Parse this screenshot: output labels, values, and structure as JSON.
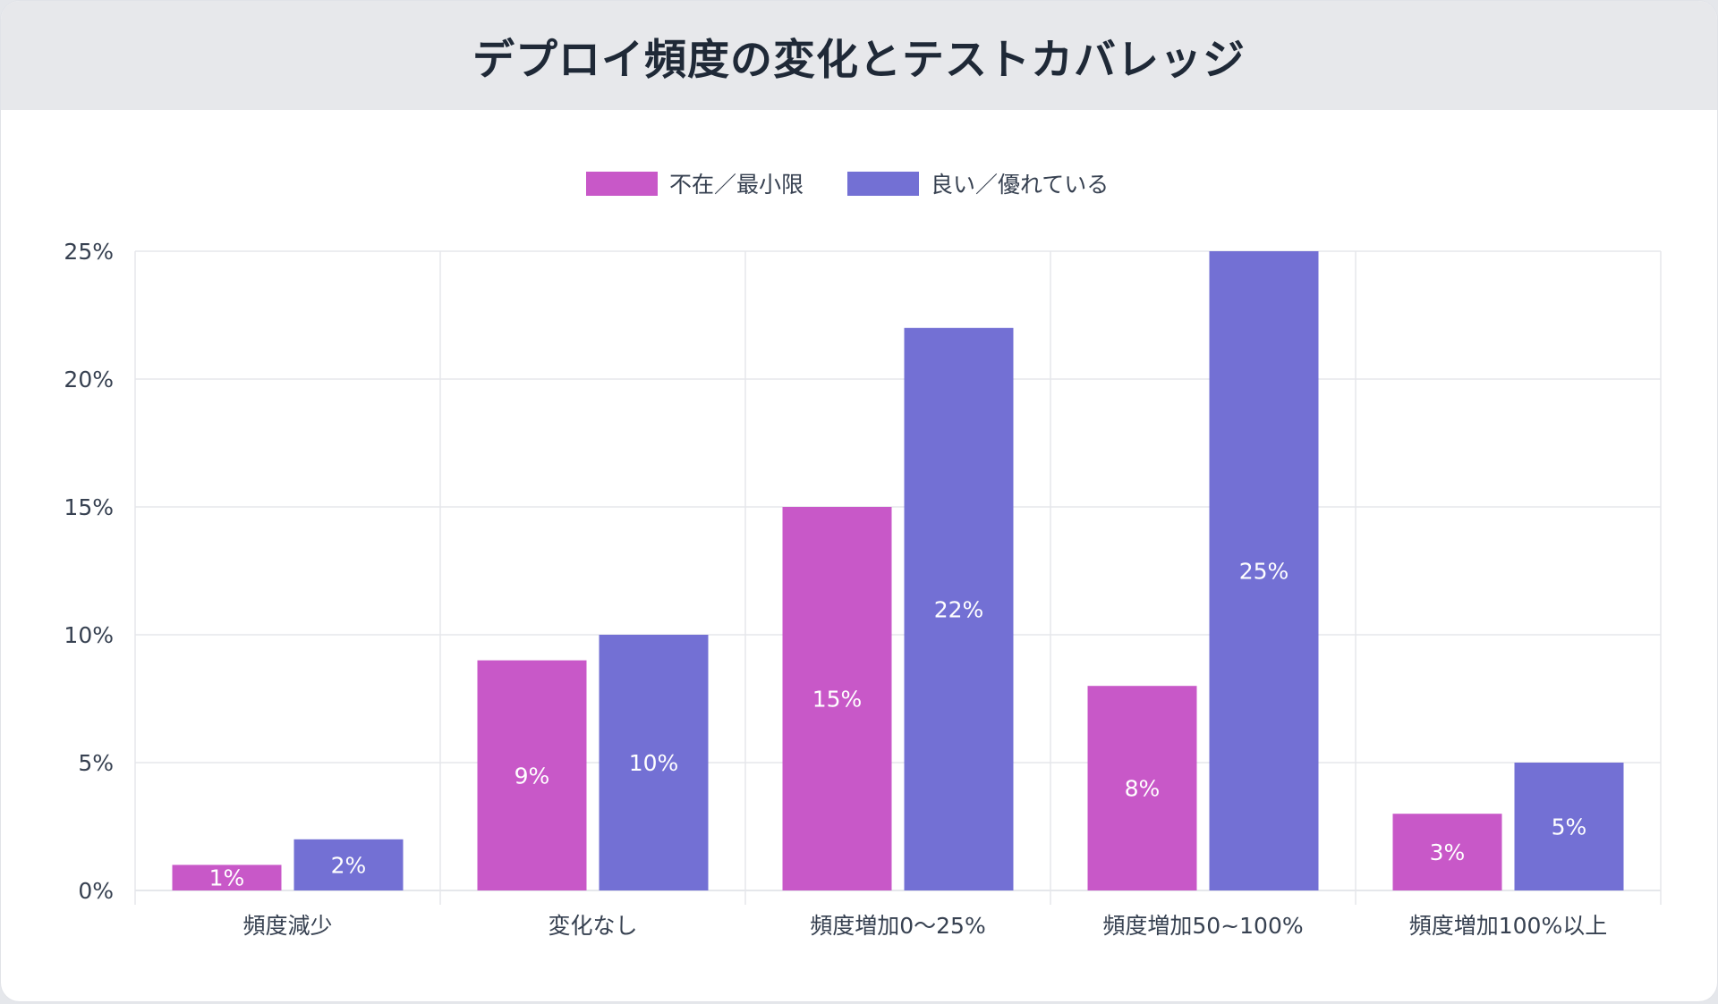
{
  "header": {
    "title": "デプロイ頻度の変化とテストカバレッジ"
  },
  "chart_data": {
    "type": "bar",
    "categories": [
      "頻度減少",
      "変化なし",
      "頻度増加0〜25%",
      "頻度増加50~100%",
      "頻度増加100%以上"
    ],
    "series": [
      {
        "name": "不在／最小限",
        "color": "#c858c8",
        "values": [
          1,
          9,
          15,
          8,
          3
        ]
      },
      {
        "name": "良い／優れている",
        "color": "#7370d4",
        "values": [
          2,
          10,
          22,
          25,
          5
        ]
      }
    ],
    "data_labels": [
      [
        "1%",
        "9%",
        "15%",
        "8%",
        "3%"
      ],
      [
        "2%",
        "10%",
        "22%",
        "25%",
        "5%"
      ]
    ],
    "yticks": [
      0,
      5,
      10,
      15,
      20,
      25
    ],
    "ytick_labels": [
      "0%",
      "5%",
      "10%",
      "15%",
      "20%",
      "25%"
    ],
    "ylim": [
      0,
      25
    ],
    "grid": true,
    "legend_position": "top-center",
    "title": "デプロイ頻度の変化とテストカバレッジ",
    "xlabel": "",
    "ylabel": ""
  }
}
